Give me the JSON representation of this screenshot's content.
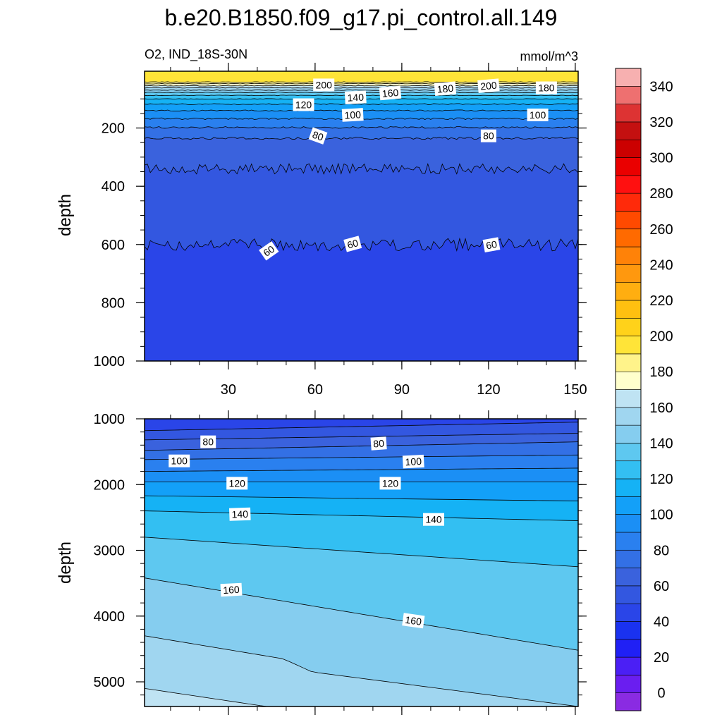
{
  "chart_data": {
    "type": "contour",
    "title": "b.e20.B1850.f09_g17.pi_control.all.149",
    "subtitle_left": "O2, IND_18S-30N",
    "subtitle_right": "mmol/m^3",
    "colorbar": {
      "levels": [
        0,
        10,
        20,
        30,
        40,
        50,
        60,
        70,
        80,
        90,
        100,
        110,
        120,
        130,
        140,
        150,
        160,
        170,
        180,
        190,
        200,
        210,
        220,
        230,
        240,
        250,
        260,
        270,
        280,
        290,
        300,
        310,
        320,
        330,
        340,
        350
      ],
      "tick_labels": [
        "0",
        "20",
        "40",
        "60",
        "80",
        "100",
        "120",
        "140",
        "160",
        "180",
        "200",
        "220",
        "240",
        "260",
        "280",
        "300",
        "320",
        "340"
      ],
      "colors": [
        "#8a2be2",
        "#6a1ef0",
        "#4b1ff5",
        "#2020f5",
        "#1a32f0",
        "#2a45e8",
        "#3357e0",
        "#3a62dd",
        "#3370e5",
        "#2a80ef",
        "#1b8ff5",
        "#13a0f8",
        "#15b2f5",
        "#33bff2",
        "#5ec8f0",
        "#85cdef",
        "#a0d6f0",
        "#bfe3f3",
        "#ffffcc",
        "#fff38a",
        "#ffe438",
        "#ffd21a",
        "#ffc010",
        "#ffae10",
        "#ff980e",
        "#ff8208",
        "#ff6a00",
        "#ff4a00",
        "#ff2a0a",
        "#ff1010",
        "#ea0000",
        "#cc0000",
        "#c41010",
        "#dd3333",
        "#ee7070",
        "#f7b0b0"
      ]
    },
    "top_panel": {
      "xlabel": "",
      "ylabel": "depth",
      "x_ticks": [
        30,
        60,
        90,
        120,
        150
      ],
      "x_range": [
        1,
        151
      ],
      "y_ticks": [
        200,
        400,
        600,
        800,
        1000
      ],
      "y_range": [
        5,
        1000
      ],
      "contour_labels": [
        {
          "text": "200",
          "x": 63,
          "y": 52,
          "angle": 0
        },
        {
          "text": "200",
          "x": 120,
          "y": 55,
          "angle": -5
        },
        {
          "text": "180",
          "x": 105,
          "y": 65,
          "angle": -5
        },
        {
          "text": "180",
          "x": 140,
          "y": 62,
          "angle": 0
        },
        {
          "text": "160",
          "x": 86,
          "y": 80,
          "angle": -5
        },
        {
          "text": "140",
          "x": 74,
          "y": 95,
          "angle": -3
        },
        {
          "text": "120",
          "x": 56,
          "y": 120,
          "angle": 0
        },
        {
          "text": "100",
          "x": 73,
          "y": 155,
          "angle": -3
        },
        {
          "text": "100",
          "x": 137,
          "y": 155,
          "angle": 0
        },
        {
          "text": "80",
          "x": 61,
          "y": 227,
          "angle": 20
        },
        {
          "text": "80",
          "x": 120,
          "y": 227,
          "angle": 0
        },
        {
          "text": "60",
          "x": 44,
          "y": 622,
          "angle": -35
        },
        {
          "text": "60",
          "x": 73,
          "y": 598,
          "angle": -15
        },
        {
          "text": "60",
          "x": 121,
          "y": 601,
          "angle": -10
        }
      ]
    },
    "bottom_panel": {
      "xlabel": "",
      "ylabel": "depth",
      "y_ticks": [
        1000,
        2000,
        3000,
        4000,
        5000
      ],
      "y_range": [
        1000,
        5375
      ],
      "contour_labels": [
        {
          "text": "80",
          "x": 23,
          "y": 1350,
          "angle": 0
        },
        {
          "text": "80",
          "x": 82,
          "y": 1375,
          "angle": -4
        },
        {
          "text": "100",
          "x": 13,
          "y": 1640,
          "angle": 0
        },
        {
          "text": "100",
          "x": 94,
          "y": 1650,
          "angle": -3
        },
        {
          "text": "120",
          "x": 33,
          "y": 1980,
          "angle": 0
        },
        {
          "text": "120",
          "x": 86,
          "y": 1980,
          "angle": 0
        },
        {
          "text": "140",
          "x": 34,
          "y": 2450,
          "angle": -2
        },
        {
          "text": "140",
          "x": 101,
          "y": 2530,
          "angle": 0
        },
        {
          "text": "160",
          "x": 31,
          "y": 3600,
          "angle": -3
        },
        {
          "text": "160",
          "x": 94,
          "y": 4070,
          "angle": 8
        }
      ]
    }
  }
}
